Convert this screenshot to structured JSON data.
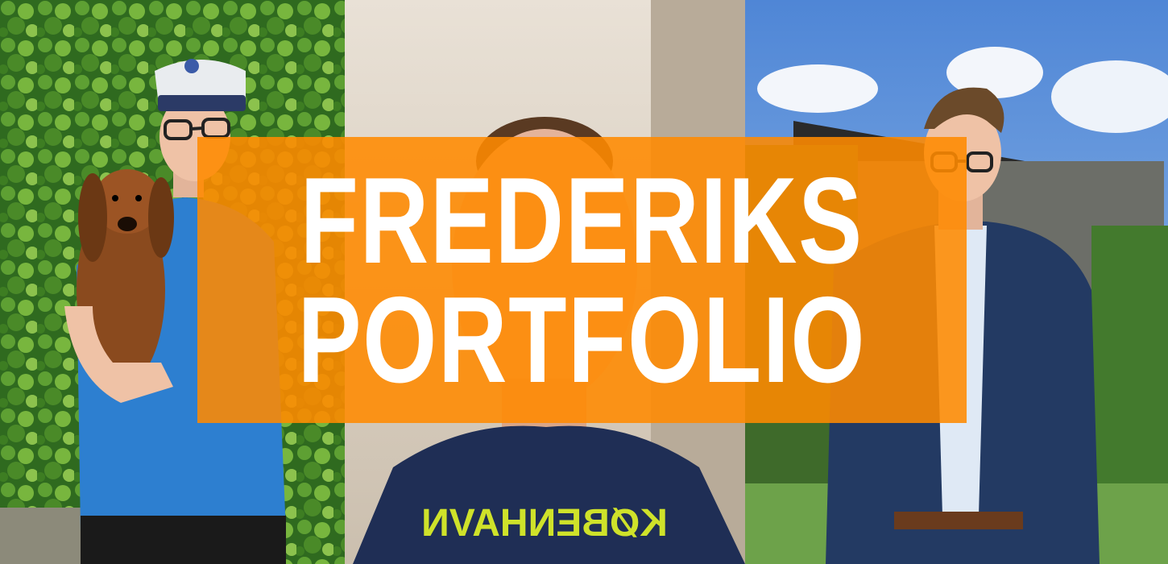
{
  "hero": {
    "title_line1": "FREDERIKS",
    "title_line2": "PORTFOLIO",
    "overlay_color": "#FF8A00"
  },
  "panels": [
    {
      "name": "photo-with-dog",
      "description_icon": "person-photo"
    },
    {
      "name": "photo-selfie",
      "description_icon": "person-photo"
    },
    {
      "name": "photo-suit",
      "description_icon": "person-photo"
    }
  ],
  "shirt_print": "KØBENHAVN"
}
